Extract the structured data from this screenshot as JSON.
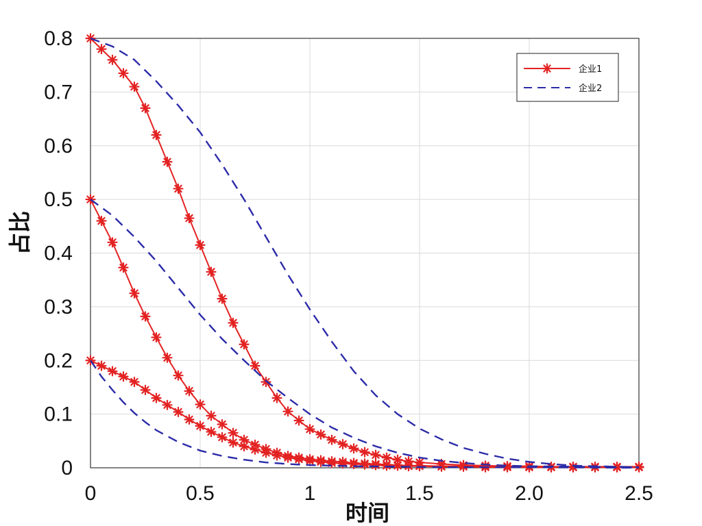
{
  "chart_data": {
    "type": "line",
    "title": "",
    "xlabel": "时间",
    "ylabel": "占比",
    "xlim": [
      0,
      2.5
    ],
    "ylim": [
      0,
      0.8
    ],
    "grid": true,
    "legend_position": "top-right",
    "x_ticks": [
      "0",
      "0.5",
      "1",
      "1.5",
      "2.0",
      "2.5"
    ],
    "x_tick_values": [
      0,
      0.5,
      1,
      1.5,
      2.0,
      2.5
    ],
    "y_ticks": [
      "0",
      "0.1",
      "0.2",
      "0.3",
      "0.4",
      "0.5",
      "0.6",
      "0.7",
      "0.8"
    ],
    "y_tick_values": [
      0,
      0.1,
      0.2,
      0.3,
      0.4,
      0.5,
      0.6,
      0.7,
      0.8
    ],
    "legend": [
      {
        "label": "企业1",
        "color": "#e32222",
        "style": "solid",
        "marker": "asterisk"
      },
      {
        "label": "企业2",
        "color": "#2b2ba8",
        "style": "dashed",
        "marker": "none"
      }
    ],
    "series": [
      {
        "legend_index": 0,
        "color": "#e32222",
        "style": "solid",
        "marker": "asterisk",
        "points": [
          [
            0,
            0.8
          ],
          [
            0.05,
            0.78
          ],
          [
            0.1,
            0.76
          ],
          [
            0.15,
            0.735
          ],
          [
            0.2,
            0.71
          ],
          [
            0.25,
            0.67
          ],
          [
            0.3,
            0.62
          ],
          [
            0.35,
            0.57
          ],
          [
            0.4,
            0.52
          ],
          [
            0.45,
            0.465
          ],
          [
            0.5,
            0.415
          ],
          [
            0.55,
            0.365
          ],
          [
            0.6,
            0.315
          ],
          [
            0.65,
            0.27
          ],
          [
            0.7,
            0.23
          ],
          [
            0.75,
            0.19
          ],
          [
            0.8,
            0.16
          ],
          [
            0.85,
            0.13
          ],
          [
            0.9,
            0.105
          ],
          [
            0.95,
            0.088
          ],
          [
            1.0,
            0.072
          ],
          [
            1.05,
            0.062
          ],
          [
            1.1,
            0.052
          ],
          [
            1.15,
            0.044
          ],
          [
            1.2,
            0.036
          ],
          [
            1.25,
            0.029
          ],
          [
            1.3,
            0.024
          ],
          [
            1.35,
            0.019
          ],
          [
            1.4,
            0.015
          ],
          [
            1.45,
            0.012
          ],
          [
            1.5,
            0.01
          ],
          [
            1.6,
            0.007
          ],
          [
            1.7,
            0.005
          ],
          [
            1.8,
            0.004
          ],
          [
            1.9,
            0.003
          ],
          [
            2.0,
            0.003
          ],
          [
            2.1,
            0.002
          ],
          [
            2.2,
            0.002
          ],
          [
            2.3,
            0.002
          ],
          [
            2.4,
            0.002
          ],
          [
            2.5,
            0.002
          ]
        ]
      },
      {
        "legend_index": 0,
        "color": "#e32222",
        "style": "solid",
        "marker": "asterisk",
        "points": [
          [
            0,
            0.5
          ],
          [
            0.05,
            0.46
          ],
          [
            0.1,
            0.42
          ],
          [
            0.15,
            0.373
          ],
          [
            0.2,
            0.325
          ],
          [
            0.25,
            0.282
          ],
          [
            0.3,
            0.243
          ],
          [
            0.35,
            0.205
          ],
          [
            0.4,
            0.172
          ],
          [
            0.45,
            0.143
          ],
          [
            0.5,
            0.118
          ],
          [
            0.55,
            0.097
          ],
          [
            0.6,
            0.081
          ],
          [
            0.65,
            0.065
          ],
          [
            0.7,
            0.052
          ],
          [
            0.75,
            0.043
          ],
          [
            0.8,
            0.035
          ],
          [
            0.85,
            0.028
          ],
          [
            0.9,
            0.022
          ],
          [
            0.95,
            0.019
          ],
          [
            1.0,
            0.016
          ],
          [
            1.05,
            0.014
          ],
          [
            1.1,
            0.012
          ],
          [
            1.15,
            0.011
          ],
          [
            1.2,
            0.009
          ],
          [
            1.25,
            0.008
          ],
          [
            1.3,
            0.007
          ],
          [
            1.35,
            0.006
          ],
          [
            1.4,
            0.005
          ],
          [
            1.45,
            0.004
          ],
          [
            1.5,
            0.004
          ],
          [
            1.6,
            0.003
          ],
          [
            1.7,
            0.003
          ],
          [
            1.8,
            0.002
          ],
          [
            1.9,
            0.002
          ],
          [
            2.0,
            0.001
          ],
          [
            2.1,
            0.001
          ],
          [
            2.2,
            0.001
          ],
          [
            2.3,
            0.001
          ],
          [
            2.4,
            0.001
          ],
          [
            2.5,
            0.001
          ]
        ]
      },
      {
        "legend_index": 0,
        "color": "#e32222",
        "style": "solid",
        "marker": "asterisk",
        "points": [
          [
            0,
            0.2
          ],
          [
            0.05,
            0.19
          ],
          [
            0.1,
            0.18
          ],
          [
            0.15,
            0.17
          ],
          [
            0.2,
            0.16
          ],
          [
            0.25,
            0.145
          ],
          [
            0.3,
            0.13
          ],
          [
            0.35,
            0.117
          ],
          [
            0.4,
            0.104
          ],
          [
            0.45,
            0.09
          ],
          [
            0.5,
            0.078
          ],
          [
            0.55,
            0.067
          ],
          [
            0.6,
            0.057
          ],
          [
            0.65,
            0.047
          ],
          [
            0.7,
            0.04
          ],
          [
            0.75,
            0.034
          ],
          [
            0.8,
            0.028
          ],
          [
            0.85,
            0.023
          ],
          [
            0.9,
            0.019
          ],
          [
            0.95,
            0.016
          ],
          [
            1.0,
            0.013
          ],
          [
            1.05,
            0.011
          ],
          [
            1.1,
            0.009
          ],
          [
            1.15,
            0.008
          ],
          [
            1.2,
            0.007
          ],
          [
            1.25,
            0.006
          ],
          [
            1.3,
            0.005
          ],
          [
            1.35,
            0.004
          ],
          [
            1.4,
            0.004
          ],
          [
            1.45,
            0.003
          ],
          [
            1.5,
            0.003
          ],
          [
            1.6,
            0.002
          ],
          [
            1.7,
            0.002
          ],
          [
            1.8,
            0.001
          ],
          [
            1.9,
            0.001
          ],
          [
            2.0,
            0.001
          ],
          [
            2.1,
            0.001
          ],
          [
            2.2,
            0.001
          ],
          [
            2.3,
            0.001
          ],
          [
            2.4,
            0.001
          ],
          [
            2.5,
            0.001
          ]
        ]
      },
      {
        "legend_index": 1,
        "color": "#2b2ba8",
        "style": "dashed",
        "marker": "none",
        "points": [
          [
            0,
            0.8
          ],
          [
            0.1,
            0.785
          ],
          [
            0.2,
            0.76
          ],
          [
            0.3,
            0.72
          ],
          [
            0.4,
            0.675
          ],
          [
            0.5,
            0.625
          ],
          [
            0.6,
            0.565
          ],
          [
            0.7,
            0.5
          ],
          [
            0.8,
            0.43
          ],
          [
            0.9,
            0.36
          ],
          [
            1.0,
            0.295
          ],
          [
            1.1,
            0.235
          ],
          [
            1.2,
            0.18
          ],
          [
            1.3,
            0.135
          ],
          [
            1.4,
            0.1
          ],
          [
            1.5,
            0.073
          ],
          [
            1.6,
            0.053
          ],
          [
            1.7,
            0.037
          ],
          [
            1.8,
            0.026
          ],
          [
            1.9,
            0.017
          ],
          [
            2.0,
            0.011
          ],
          [
            2.1,
            0.007
          ],
          [
            2.2,
            0.004
          ],
          [
            2.3,
            0.003
          ],
          [
            2.4,
            0.002
          ],
          [
            2.5,
            0.001
          ]
        ]
      },
      {
        "legend_index": 1,
        "color": "#2b2ba8",
        "style": "dashed",
        "marker": "none",
        "points": [
          [
            0,
            0.5
          ],
          [
            0.1,
            0.47
          ],
          [
            0.2,
            0.43
          ],
          [
            0.3,
            0.385
          ],
          [
            0.4,
            0.335
          ],
          [
            0.5,
            0.285
          ],
          [
            0.6,
            0.24
          ],
          [
            0.7,
            0.2
          ],
          [
            0.8,
            0.162
          ],
          [
            0.9,
            0.13
          ],
          [
            1.0,
            0.1
          ],
          [
            1.1,
            0.075
          ],
          [
            1.2,
            0.056
          ],
          [
            1.3,
            0.04
          ],
          [
            1.4,
            0.028
          ],
          [
            1.5,
            0.019
          ],
          [
            1.6,
            0.013
          ],
          [
            1.7,
            0.009
          ],
          [
            1.8,
            0.006
          ],
          [
            1.9,
            0.004
          ],
          [
            2.0,
            0.003
          ],
          [
            2.2,
            0.002
          ],
          [
            2.5,
            0.001
          ]
        ]
      },
      {
        "legend_index": 1,
        "color": "#2b2ba8",
        "style": "dashed",
        "marker": "none",
        "points": [
          [
            0,
            0.2
          ],
          [
            0.05,
            0.17
          ],
          [
            0.1,
            0.145
          ],
          [
            0.15,
            0.122
          ],
          [
            0.2,
            0.102
          ],
          [
            0.25,
            0.085
          ],
          [
            0.3,
            0.07
          ],
          [
            0.4,
            0.048
          ],
          [
            0.5,
            0.032
          ],
          [
            0.6,
            0.022
          ],
          [
            0.7,
            0.015
          ],
          [
            0.8,
            0.01
          ],
          [
            0.9,
            0.007
          ],
          [
            1.0,
            0.005
          ],
          [
            1.2,
            0.003
          ],
          [
            1.4,
            0.002
          ],
          [
            1.6,
            0.001
          ],
          [
            2.0,
            0.001
          ],
          [
            2.5,
            0.0
          ]
        ]
      }
    ]
  }
}
